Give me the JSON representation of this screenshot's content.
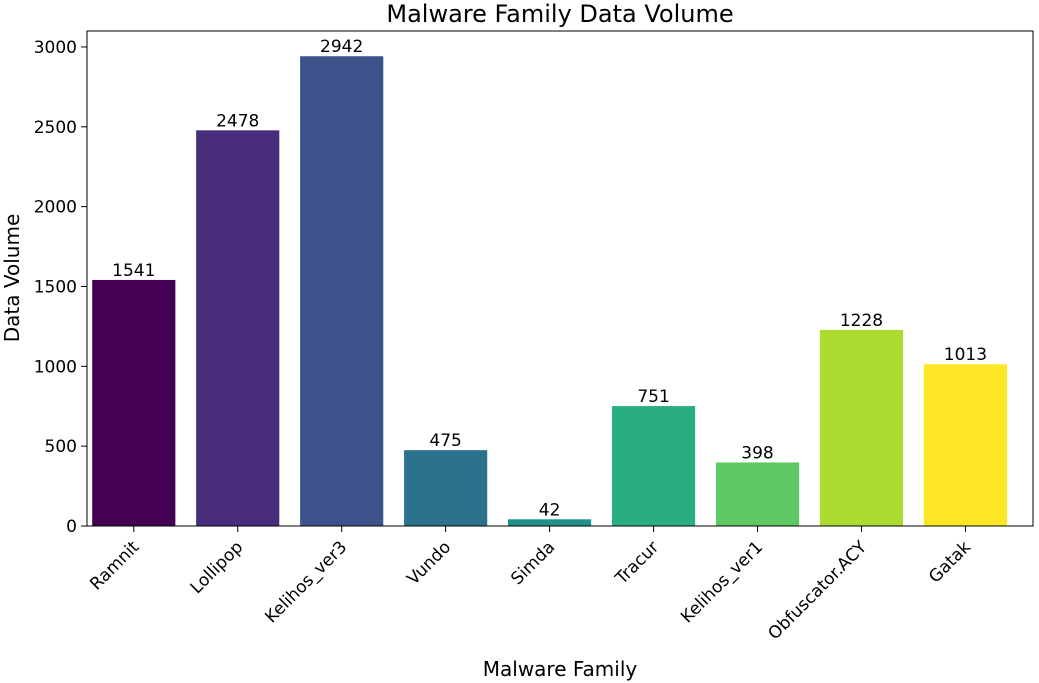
{
  "chart_data": {
    "type": "bar",
    "title": "Malware Family Data Volume",
    "xlabel": "Malware Family",
    "ylabel": "Data Volume",
    "categories": [
      "Ramnit",
      "Lollipop",
      "Kelihos_ver3",
      "Vundo",
      "Simda",
      "Tracur",
      "Kelihos_ver1",
      "Obfuscator.ACY",
      "Gatak"
    ],
    "values": [
      1541,
      2478,
      2942,
      475,
      42,
      751,
      398,
      1228,
      1013
    ],
    "colors": [
      "#440154",
      "#472d7b",
      "#3b528b",
      "#2c728e",
      "#21918c",
      "#28ae80",
      "#5ec962",
      "#addc30",
      "#fde725"
    ],
    "ylim": [
      0,
      3100
    ],
    "yticks": [
      0,
      500,
      1000,
      1500,
      2000,
      2500,
      3000
    ],
    "grid": false,
    "legend": "none"
  }
}
